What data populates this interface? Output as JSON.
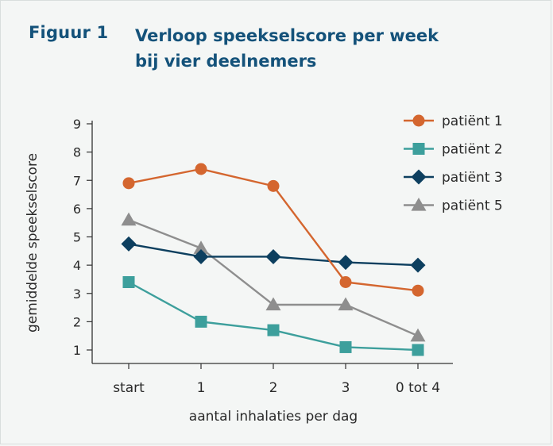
{
  "figure": {
    "label": "Figuur 1",
    "title_line1": "Verloop speekselscore per week",
    "title_line2": "bij vier deelnemers"
  },
  "chart_data": {
    "type": "line",
    "title": "Verloop speekselscore per week bij vier deelnemers",
    "xlabel": "aantal inhalaties per dag",
    "ylabel": "gemiddelde speekselscore",
    "categories": [
      "start",
      "1",
      "2",
      "3",
      "0 tot 4"
    ],
    "ylim": [
      0.5,
      9
    ],
    "yticks": [
      1,
      2,
      3,
      4,
      5,
      6,
      7,
      8,
      9
    ],
    "grid": false,
    "legend_position": "top-right",
    "series": [
      {
        "name": "patiënt 1",
        "marker": "circle",
        "color": "#d4662f",
        "values": [
          6.9,
          7.4,
          6.8,
          3.4,
          3.1
        ]
      },
      {
        "name": "patiënt 2",
        "marker": "square",
        "color": "#3d9f9c",
        "values": [
          3.4,
          2.0,
          1.7,
          1.1,
          1.0
        ]
      },
      {
        "name": "patiënt 3",
        "marker": "diamond",
        "color": "#0d3f5f",
        "values": [
          4.75,
          4.3,
          4.3,
          4.1,
          4.0
        ]
      },
      {
        "name": "patiënt 5",
        "marker": "triangle",
        "color": "#8e8e8e",
        "values": [
          5.6,
          4.6,
          2.6,
          2.6,
          1.5
        ]
      }
    ]
  }
}
